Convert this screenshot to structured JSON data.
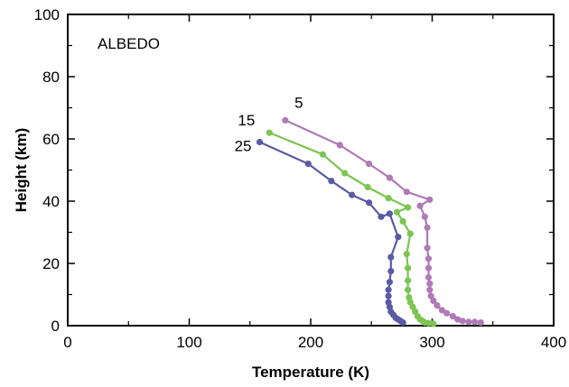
{
  "chart_data": {
    "type": "line",
    "title": "",
    "annotation": "ALBEDO",
    "xlabel": "Temperature (K)",
    "ylabel": "Height (km)",
    "xlim": [
      0,
      400
    ],
    "ylim": [
      0,
      100
    ],
    "xticks": [
      0,
      100,
      200,
      300,
      400
    ],
    "yticks": [
      0,
      20,
      40,
      60,
      80,
      100
    ],
    "grid": false,
    "legend": "none",
    "series": [
      {
        "name": "5",
        "color": "#b07ab8",
        "points": [
          [
            179,
            66
          ],
          [
            224,
            58
          ],
          [
            248,
            52
          ],
          [
            265,
            47.5
          ],
          [
            279,
            43
          ],
          [
            298,
            40.5
          ],
          [
            290,
            38.5
          ],
          [
            294,
            35
          ],
          [
            296,
            31.5
          ],
          [
            296,
            25
          ],
          [
            297,
            21.5
          ],
          [
            297,
            18.5
          ],
          [
            297,
            15.5
          ],
          [
            298,
            13.5
          ],
          [
            298,
            11.5
          ],
          [
            299,
            9.5
          ],
          [
            301,
            8
          ],
          [
            304,
            6.5
          ],
          [
            308,
            5
          ],
          [
            312,
            4
          ],
          [
            317,
            3
          ],
          [
            321,
            2
          ],
          [
            325,
            1.5
          ],
          [
            330,
            1.2
          ],
          [
            335,
            1.2
          ],
          [
            340,
            1
          ]
        ]
      },
      {
        "name": "15",
        "color": "#7cc552",
        "points": [
          [
            166,
            62
          ],
          [
            210,
            55
          ],
          [
            228,
            49
          ],
          [
            247,
            44.5
          ],
          [
            264,
            41
          ],
          [
            280,
            38
          ],
          [
            271,
            36.5
          ],
          [
            276,
            33.5
          ],
          [
            282,
            29.5
          ],
          [
            279,
            23
          ],
          [
            280,
            18.5
          ],
          [
            280,
            14.5
          ],
          [
            280,
            11.5
          ],
          [
            281,
            9
          ],
          [
            282,
            7.5
          ],
          [
            284,
            6
          ],
          [
            286,
            4.5
          ],
          [
            288,
            3
          ],
          [
            290,
            2
          ],
          [
            292,
            1.5
          ],
          [
            294,
            1
          ],
          [
            297,
            0.8
          ],
          [
            301,
            0.6
          ]
        ]
      },
      {
        "name": "25",
        "color": "#5a5aa5",
        "points": [
          [
            158,
            59
          ],
          [
            198,
            52
          ],
          [
            217,
            46.5
          ],
          [
            234,
            42
          ],
          [
            248,
            39.5
          ],
          [
            258,
            35
          ],
          [
            265,
            36
          ],
          [
            272,
            28.5
          ],
          [
            266,
            22
          ],
          [
            266,
            17.5
          ],
          [
            265,
            14
          ],
          [
            264,
            11.5
          ],
          [
            264,
            9.5
          ],
          [
            264,
            7.5
          ],
          [
            265,
            6
          ],
          [
            266,
            4.5
          ],
          [
            268,
            3.5
          ],
          [
            270,
            2.5
          ],
          [
            272,
            2
          ],
          [
            274,
            1.5
          ],
          [
            276,
            1
          ]
        ]
      }
    ]
  }
}
